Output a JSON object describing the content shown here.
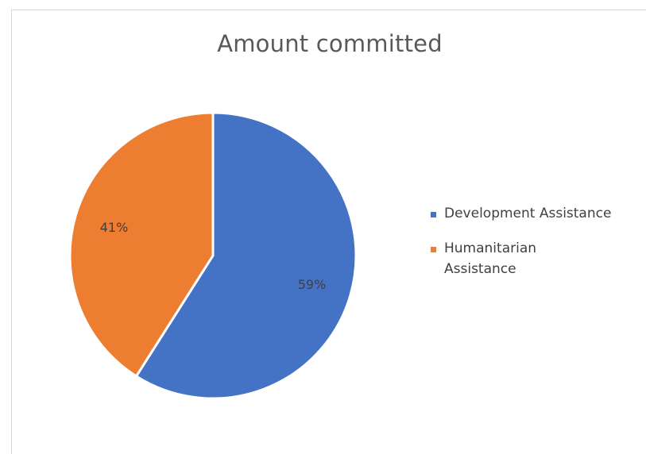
{
  "chart_data": {
    "type": "pie",
    "title": "Amount committed",
    "categories": [
      "Development Assistance",
      "Humanitarian Assistance"
    ],
    "values": [
      59,
      41
    ],
    "data_labels": [
      "59%",
      "41%"
    ],
    "colors": [
      "#4472C4",
      "#ED7D31"
    ],
    "legend_position": "right"
  }
}
